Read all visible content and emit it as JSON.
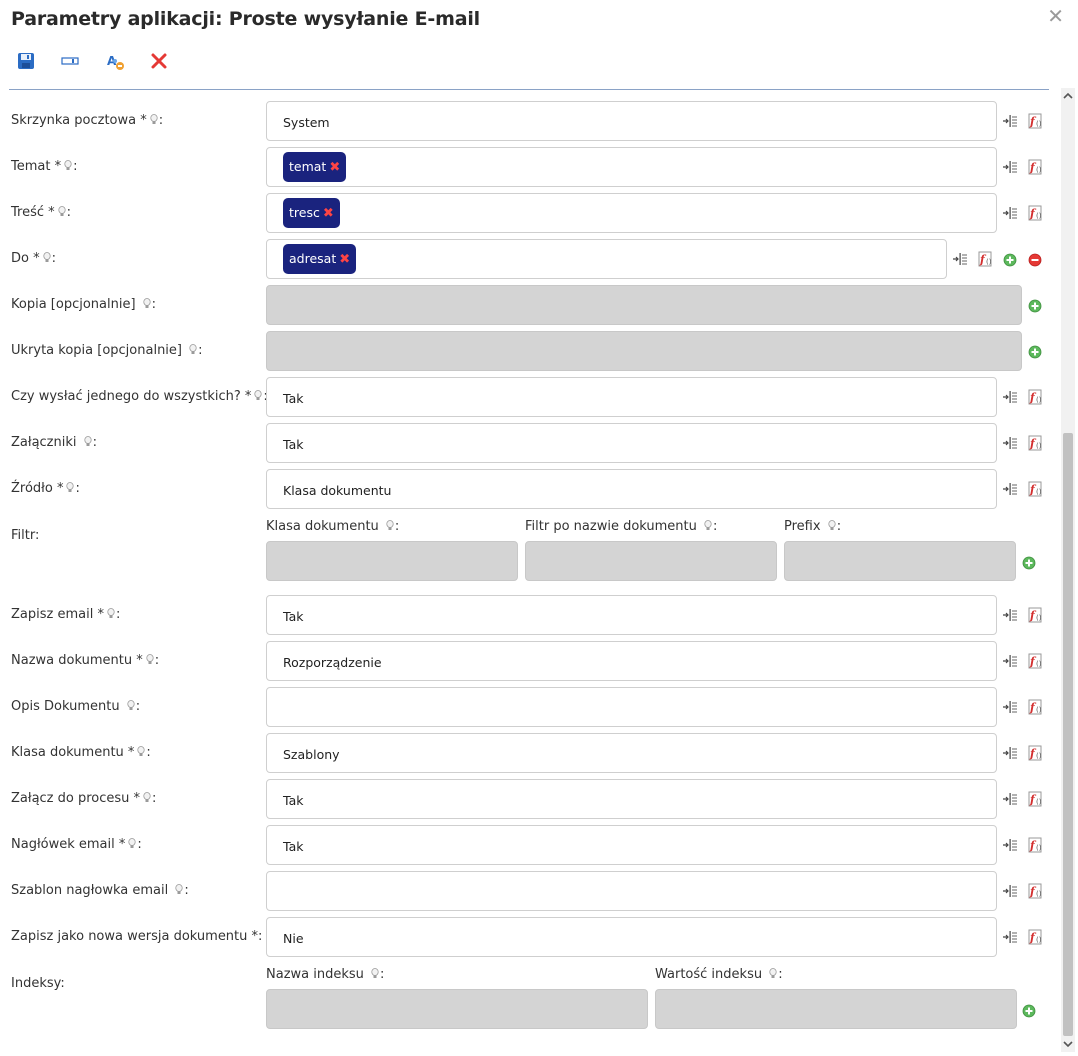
{
  "dialog": {
    "title": "Parametry aplikacji: Proste wysyłanie E-mail"
  },
  "fields": [
    {
      "label": "Skrzynka pocztowa *",
      "value": "System"
    },
    {
      "label": "Temat *",
      "tag": "temat"
    },
    {
      "label": "Treść *",
      "tag": "tresc"
    },
    {
      "label": "Do *",
      "tag": "adresat"
    },
    {
      "label": "Kopia [opcjonalnie] ",
      "value": ""
    },
    {
      "label": "Ukryta kopia [opcjonalnie] ",
      "value": ""
    },
    {
      "label": "Czy wysłać jednego do wszystkich? *",
      "value": "Tak"
    },
    {
      "label": "Załączniki ",
      "value": "Tak"
    },
    {
      "label": "Źródło *",
      "value": "Klasa dokumentu"
    },
    {
      "label": "Zapisz email *",
      "value": "Tak"
    },
    {
      "label": "Nazwa dokumentu *",
      "value": "Rozporządzenie"
    },
    {
      "label": "Opis Dokumentu ",
      "value": ""
    },
    {
      "label": "Klasa dokumentu *",
      "value": "Szablony"
    },
    {
      "label": "Załącz do procesu *",
      "value": "Tak"
    },
    {
      "label": "Nagłówek email *",
      "value": "Tak"
    },
    {
      "label": "Szablon nagłowka email ",
      "value": ""
    },
    {
      "label": "Zapisz jako nowa wersja dokumentu *:",
      "value": "Nie"
    }
  ],
  "filter": {
    "label": "Filtr:",
    "columns": [
      "Klasa dokumentu ",
      "Filtr po nazwie dokumentu ",
      "Prefix "
    ]
  },
  "indexes": {
    "label": "Indeksy:",
    "columns": [
      "Nazwa indeksu ",
      "Wartość indeksu "
    ]
  },
  "icons": {
    "toolbar": [
      "save-icon",
      "field-icon",
      "settings-refresh-icon",
      "cancel-icon"
    ],
    "row_actions": [
      "insert-variable-icon",
      "function-icon",
      "add-icon",
      "remove-icon"
    ]
  },
  "colors": {
    "tag_bg": "#1a237e",
    "add_green": "#5cb85c",
    "remove_red": "#e53935",
    "divider": "#8aa2c6"
  }
}
